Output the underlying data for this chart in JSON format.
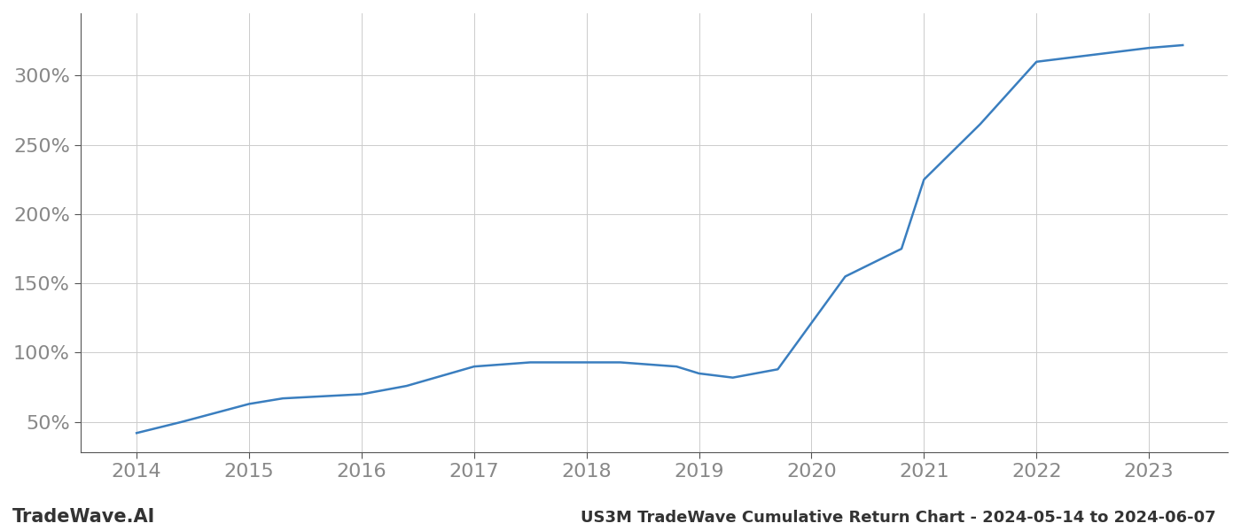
{
  "x_years": [
    2014,
    2014.4,
    2015,
    2015.3,
    2016,
    2016.4,
    2017,
    2017.5,
    2018,
    2018.3,
    2018.8,
    2019,
    2019.3,
    2019.7,
    2020.3,
    2020.8,
    2021,
    2021.5,
    2022,
    2022.3,
    2023,
    2023.3
  ],
  "y_values": [
    42,
    50,
    63,
    67,
    70,
    76,
    90,
    93,
    93,
    93,
    90,
    85,
    82,
    88,
    155,
    175,
    225,
    265,
    310,
    313,
    320,
    322
  ],
  "line_color": "#3a7ebf",
  "line_width": 1.8,
  "background_color": "#ffffff",
  "grid_color": "#cccccc",
  "title": "US3M TradeWave Cumulative Return Chart - 2024-05-14 to 2024-06-07",
  "watermark": "TradeWave.AI",
  "ylabel_ticks": [
    50,
    100,
    150,
    200,
    250,
    300
  ],
  "ylabel_tick_labels": [
    "50%",
    "100%",
    "150%",
    "200%",
    "250%",
    "300%"
  ],
  "xlim": [
    2013.5,
    2023.7
  ],
  "ylim": [
    28,
    345
  ],
  "xtick_labels": [
    "2014",
    "2015",
    "2016",
    "2017",
    "2018",
    "2019",
    "2020",
    "2021",
    "2022",
    "2023"
  ],
  "xtick_positions": [
    2014,
    2015,
    2016,
    2017,
    2018,
    2019,
    2020,
    2021,
    2022,
    2023
  ],
  "title_fontsize": 13,
  "watermark_fontsize": 15,
  "tick_fontsize": 16,
  "tick_color": "#888888",
  "spine_color": "#555555",
  "bottom_text_color": "#333333"
}
